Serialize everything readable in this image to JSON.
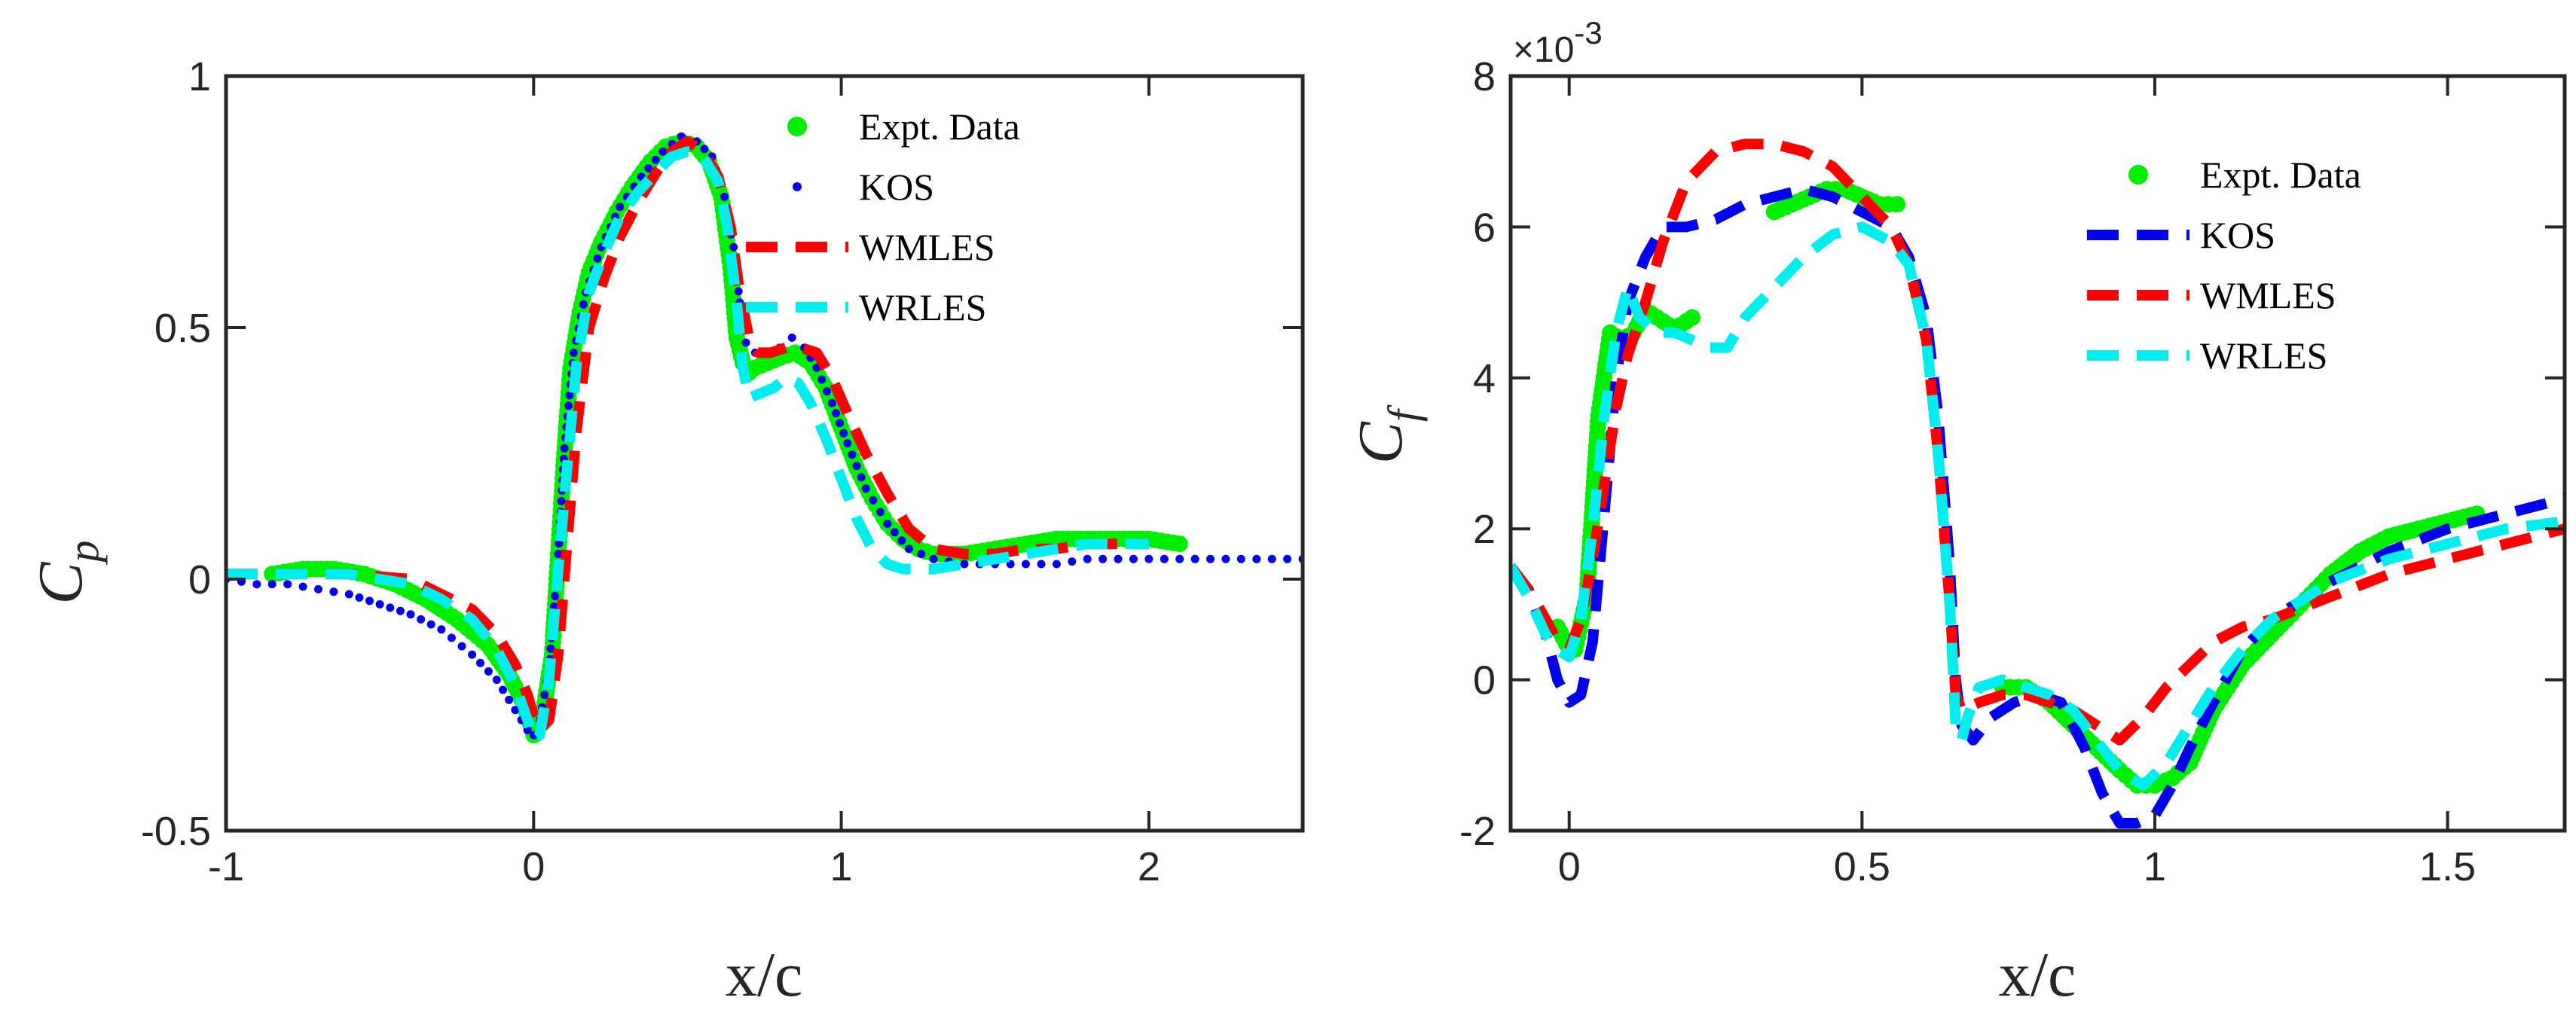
{
  "colors": {
    "expt": "#00ee00",
    "kos": "#0000ee",
    "wmles": "#ff0000",
    "wrles": "#00eeee",
    "axis": "#262626"
  },
  "chart_data": [
    {
      "type": "line",
      "title": "",
      "xlabel": "x/c",
      "ylabel_main": "C",
      "ylabel_sub": "p",
      "xlim": [
        -1,
        2.5
      ],
      "ylim": [
        -0.5,
        1
      ],
      "xticks": [
        -1,
        0,
        1,
        2
      ],
      "xtick_labels": [
        "-1",
        "0",
        "1",
        "2"
      ],
      "yticks": [
        -0.5,
        0,
        0.5,
        1
      ],
      "ytick_labels": [
        "-0.5",
        "0",
        "0.5",
        "1"
      ],
      "legend_position": "top-right",
      "legend": [
        "Expt. Data",
        "KOS",
        "WMLES",
        "WRLES"
      ],
      "series": [
        {
          "name": "Expt. Data",
          "style": "markers-large",
          "x": [
            -0.85,
            -0.75,
            -0.65,
            -0.55,
            -0.45,
            -0.35,
            -0.25,
            -0.15,
            -0.08,
            -0.03,
            0.0,
            0.03,
            0.06,
            0.08,
            0.1,
            0.12,
            0.15,
            0.18,
            0.22,
            0.27,
            0.32,
            0.38,
            0.43,
            0.48,
            0.53,
            0.57,
            0.61,
            0.64,
            0.66,
            0.68,
            0.7,
            0.72,
            0.76,
            0.8,
            0.85,
            0.9,
            0.95,
            1.0,
            1.05,
            1.1,
            1.15,
            1.2,
            1.25,
            1.3,
            1.4,
            1.5,
            1.6,
            1.7,
            1.8,
            1.9,
            2.0,
            2.1
          ],
          "y": [
            0.01,
            0.02,
            0.02,
            0.01,
            -0.01,
            -0.04,
            -0.08,
            -0.13,
            -0.19,
            -0.25,
            -0.31,
            -0.27,
            -0.15,
            0.05,
            0.25,
            0.42,
            0.53,
            0.61,
            0.67,
            0.73,
            0.78,
            0.83,
            0.86,
            0.87,
            0.86,
            0.83,
            0.76,
            0.62,
            0.48,
            0.43,
            0.41,
            0.42,
            0.43,
            0.44,
            0.45,
            0.43,
            0.38,
            0.3,
            0.22,
            0.16,
            0.11,
            0.08,
            0.06,
            0.05,
            0.05,
            0.06,
            0.07,
            0.08,
            0.08,
            0.08,
            0.08,
            0.07
          ]
        },
        {
          "name": "KOS",
          "style": "dots",
          "x": [
            -1.0,
            -0.9,
            -0.8,
            -0.7,
            -0.6,
            -0.5,
            -0.4,
            -0.3,
            -0.2,
            -0.12,
            -0.06,
            -0.02,
            0.0,
            0.02,
            0.05,
            0.08,
            0.1,
            0.13,
            0.17,
            0.22,
            0.28,
            0.35,
            0.42,
            0.48,
            0.53,
            0.58,
            0.62,
            0.65,
            0.67,
            0.69,
            0.72,
            0.76,
            0.8,
            0.84,
            0.88,
            0.92,
            0.97,
            1.02,
            1.08,
            1.15,
            1.22,
            1.3,
            1.4,
            1.5,
            1.6,
            1.7,
            1.8,
            1.9,
            2.0,
            2.1,
            2.2,
            2.3,
            2.4,
            2.5
          ],
          "y": [
            0.0,
            -0.01,
            -0.01,
            -0.02,
            -0.03,
            -0.05,
            -0.07,
            -0.1,
            -0.15,
            -0.2,
            -0.26,
            -0.3,
            -0.31,
            -0.28,
            -0.18,
            0.05,
            0.26,
            0.45,
            0.57,
            0.66,
            0.74,
            0.8,
            0.85,
            0.88,
            0.87,
            0.84,
            0.76,
            0.66,
            0.55,
            0.47,
            0.45,
            0.45,
            0.46,
            0.48,
            0.46,
            0.42,
            0.35,
            0.27,
            0.18,
            0.11,
            0.06,
            0.04,
            0.03,
            0.03,
            0.03,
            0.03,
            0.04,
            0.04,
            0.04,
            0.04,
            0.04,
            0.04,
            0.04,
            0.04
          ]
        },
        {
          "name": "WMLES",
          "style": "dashed",
          "x": [
            -1.0,
            -0.8,
            -0.6,
            -0.4,
            -0.3,
            -0.2,
            -0.12,
            -0.06,
            -0.02,
            0.0,
            0.02,
            0.05,
            0.08,
            0.11,
            0.14,
            0.18,
            0.23,
            0.28,
            0.34,
            0.4,
            0.45,
            0.5,
            0.55,
            0.6,
            0.64,
            0.67,
            0.7,
            0.73,
            0.77,
            0.82,
            0.87,
            0.92,
            0.97,
            1.02,
            1.08,
            1.15,
            1.22,
            1.3,
            1.4,
            1.5,
            1.6,
            1.7,
            1.8,
            1.9,
            2.0
          ],
          "y": [
            0.01,
            0.01,
            0.01,
            0.0,
            -0.03,
            -0.06,
            -0.11,
            -0.17,
            -0.23,
            -0.27,
            -0.3,
            -0.28,
            -0.15,
            0.08,
            0.3,
            0.5,
            0.6,
            0.68,
            0.75,
            0.81,
            0.85,
            0.87,
            0.85,
            0.8,
            0.7,
            0.57,
            0.48,
            0.45,
            0.45,
            0.46,
            0.46,
            0.45,
            0.4,
            0.33,
            0.25,
            0.17,
            0.1,
            0.06,
            0.05,
            0.05,
            0.06,
            0.06,
            0.07,
            0.07,
            0.07
          ]
        },
        {
          "name": "WRLES",
          "style": "dashed",
          "x": [
            -1.0,
            -0.8,
            -0.6,
            -0.4,
            -0.3,
            -0.2,
            -0.12,
            -0.06,
            -0.02,
            0.0,
            0.02,
            0.05,
            0.08,
            0.11,
            0.14,
            0.18,
            0.23,
            0.28,
            0.34,
            0.4,
            0.45,
            0.5,
            0.55,
            0.6,
            0.63,
            0.66,
            0.68,
            0.7,
            0.74,
            0.78,
            0.82,
            0.86,
            0.9,
            0.95,
            1.0,
            1.05,
            1.1,
            1.15,
            1.2,
            1.25,
            1.3,
            1.4,
            1.5,
            1.6,
            1.7,
            1.8,
            1.9,
            2.0
          ],
          "y": [
            0.01,
            0.01,
            0.01,
            -0.01,
            -0.04,
            -0.08,
            -0.14,
            -0.21,
            -0.28,
            -0.32,
            -0.31,
            -0.2,
            0.02,
            0.23,
            0.43,
            0.57,
            0.65,
            0.72,
            0.77,
            0.81,
            0.84,
            0.85,
            0.84,
            0.79,
            0.7,
            0.55,
            0.42,
            0.36,
            0.37,
            0.38,
            0.4,
            0.39,
            0.35,
            0.28,
            0.2,
            0.12,
            0.06,
            0.03,
            0.02,
            0.02,
            0.02,
            0.03,
            0.04,
            0.05,
            0.06,
            0.07,
            0.07,
            0.07
          ]
        }
      ]
    },
    {
      "type": "line",
      "title": "",
      "xlabel": "x/c",
      "ylabel_main": "C",
      "ylabel_sub": "f",
      "exponent_label": "×10",
      "exponent_power": "-3",
      "xlim": [
        -0.1,
        1.7
      ],
      "ylim": [
        -2,
        8
      ],
      "xticks": [
        0,
        0.5,
        1,
        1.5
      ],
      "xtick_labels": [
        "0",
        "0.5",
        "1",
        "1.5"
      ],
      "yticks": [
        -2,
        0,
        2,
        4,
        6,
        8
      ],
      "ytick_labels": [
        "-2",
        "0",
        "2",
        "4",
        "6",
        "8"
      ],
      "y_units": "×1e-3",
      "legend_position": "top-right",
      "legend": [
        "Expt. Data",
        "KOS",
        "WMLES",
        "WRLES"
      ],
      "series": [
        {
          "name": "Expt. Data",
          "style": "markers-large",
          "x": [
            -0.02,
            0.0,
            0.01,
            0.03,
            0.05,
            0.07,
            0.09,
            0.11,
            0.13,
            0.15,
            0.17,
            0.19,
            0.21,
            0.35,
            0.38,
            0.41,
            0.44,
            0.47,
            0.5,
            0.53,
            0.56,
            0.74,
            0.78,
            0.82,
            0.86,
            0.9,
            0.94,
            0.97,
            1.0,
            1.03,
            1.06,
            1.1,
            1.15,
            1.2,
            1.25,
            1.3,
            1.35,
            1.4,
            1.45,
            1.5,
            1.55
          ],
          "y": [
            0.7,
            0.4,
            0.4,
            1.1,
            3.5,
            4.6,
            4.5,
            4.6,
            4.9,
            4.8,
            4.7,
            4.7,
            4.8,
            6.2,
            6.3,
            6.4,
            6.5,
            6.5,
            6.4,
            6.3,
            6.3,
            -0.1,
            -0.1,
            -0.3,
            -0.6,
            -0.9,
            -1.2,
            -1.4,
            -1.4,
            -1.3,
            -1.1,
            -0.4,
            0.2,
            0.6,
            1.0,
            1.4,
            1.7,
            1.9,
            2.0,
            2.1,
            2.2
          ]
        },
        {
          "name": "KOS",
          "style": "dashed",
          "x": [
            -0.1,
            -0.07,
            -0.04,
            -0.02,
            0.0,
            0.02,
            0.04,
            0.06,
            0.08,
            0.1,
            0.13,
            0.16,
            0.2,
            0.25,
            0.3,
            0.35,
            0.4,
            0.45,
            0.5,
            0.55,
            0.58,
            0.61,
            0.63,
            0.65,
            0.66,
            0.67,
            0.69,
            0.72,
            0.76,
            0.8,
            0.84,
            0.88,
            0.91,
            0.94,
            0.97,
            1.0,
            1.03,
            1.06,
            1.1,
            1.15,
            1.2,
            1.3,
            1.4,
            1.5,
            1.6,
            1.7
          ],
          "y": [
            1.5,
            1.2,
            0.6,
            0.0,
            -0.3,
            -0.2,
            0.5,
            2.2,
            4.0,
            5.0,
            5.6,
            6.0,
            6.0,
            6.1,
            6.3,
            6.4,
            6.5,
            6.4,
            6.2,
            6.0,
            5.6,
            4.8,
            3.5,
            1.5,
            0.0,
            -0.6,
            -0.8,
            -0.5,
            -0.3,
            -0.2,
            -0.3,
            -0.9,
            -1.5,
            -1.9,
            -1.9,
            -1.8,
            -1.4,
            -0.9,
            -0.3,
            0.4,
            0.8,
            1.3,
            1.7,
            2.0,
            2.2,
            2.4
          ]
        },
        {
          "name": "WMLES",
          "style": "dashed",
          "x": [
            -0.1,
            -0.07,
            -0.04,
            -0.02,
            0.0,
            0.02,
            0.04,
            0.06,
            0.08,
            0.1,
            0.13,
            0.16,
            0.2,
            0.25,
            0.3,
            0.35,
            0.4,
            0.45,
            0.5,
            0.55,
            0.58,
            0.61,
            0.63,
            0.65,
            0.66,
            0.67,
            0.7,
            0.74,
            0.78,
            0.82,
            0.86,
            0.9,
            0.94,
            0.98,
            1.02,
            1.06,
            1.1,
            1.15,
            1.2,
            1.3,
            1.4,
            1.5,
            1.6,
            1.7
          ],
          "y": [
            1.5,
            1.2,
            0.8,
            0.5,
            0.4,
            0.8,
            1.6,
            2.6,
            3.6,
            4.3,
            5.0,
            5.8,
            6.6,
            7.0,
            7.1,
            7.1,
            7.0,
            6.8,
            6.4,
            6.0,
            5.5,
            4.5,
            3.0,
            1.0,
            -0.2,
            -0.4,
            -0.3,
            -0.2,
            -0.2,
            -0.3,
            -0.4,
            -0.6,
            -0.8,
            -0.5,
            -0.1,
            0.2,
            0.5,
            0.7,
            0.8,
            1.1,
            1.4,
            1.6,
            1.8,
            2.0
          ]
        },
        {
          "name": "WRLES",
          "style": "dashed",
          "x": [
            -0.1,
            -0.07,
            -0.04,
            -0.02,
            0.0,
            0.02,
            0.04,
            0.06,
            0.08,
            0.1,
            0.12,
            0.15,
            0.18,
            0.21,
            0.24,
            0.27,
            0.3,
            0.35,
            0.4,
            0.45,
            0.5,
            0.55,
            0.58,
            0.61,
            0.63,
            0.65,
            0.66,
            0.67,
            0.68,
            0.7,
            0.74,
            0.78,
            0.82,
            0.86,
            0.9,
            0.94,
            0.98,
            1.02,
            1.06,
            1.1,
            1.15,
            1.2,
            1.3,
            1.4,
            1.5,
            1.6,
            1.7
          ],
          "y": [
            1.5,
            1.1,
            0.6,
            0.4,
            0.3,
            0.8,
            2.0,
            3.5,
            4.6,
            5.2,
            4.8,
            4.6,
            4.6,
            4.5,
            4.4,
            4.4,
            4.8,
            5.2,
            5.6,
            5.9,
            6.0,
            5.8,
            5.5,
            4.5,
            3.0,
            1.0,
            -0.6,
            -0.8,
            -0.5,
            -0.1,
            0.0,
            -0.1,
            -0.2,
            -0.4,
            -0.8,
            -1.2,
            -1.4,
            -1.1,
            -0.6,
            -0.1,
            0.4,
            0.8,
            1.3,
            1.6,
            1.8,
            2.0,
            2.1
          ]
        }
      ]
    }
  ]
}
